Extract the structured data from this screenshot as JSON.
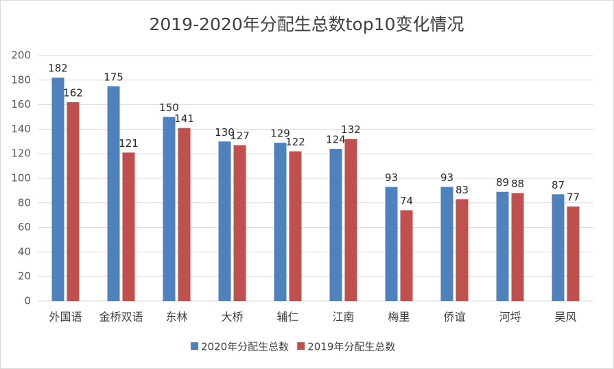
{
  "chart_data": {
    "type": "bar",
    "title": "2019-2020年分配生总数top10变化情况",
    "categories": [
      "外国语",
      "金桥双语",
      "东林",
      "大桥",
      "辅仁",
      "江南",
      "梅里",
      "侨谊",
      "河埒",
      "吴风"
    ],
    "series": [
      {
        "name": "2020年分配生总数",
        "color": "#4f81bd",
        "values": [
          182,
          175,
          150,
          130,
          129,
          124,
          93,
          93,
          89,
          87
        ]
      },
      {
        "name": "2019年分配生总数",
        "color": "#c0504d",
        "values": [
          162,
          121,
          141,
          127,
          122,
          132,
          74,
          83,
          88,
          77
        ]
      }
    ],
    "ylim": [
      0,
      200
    ],
    "yticks": [
      0,
      20,
      40,
      60,
      80,
      100,
      120,
      140,
      160,
      180,
      200
    ],
    "grid": true,
    "legend": "bottom"
  }
}
